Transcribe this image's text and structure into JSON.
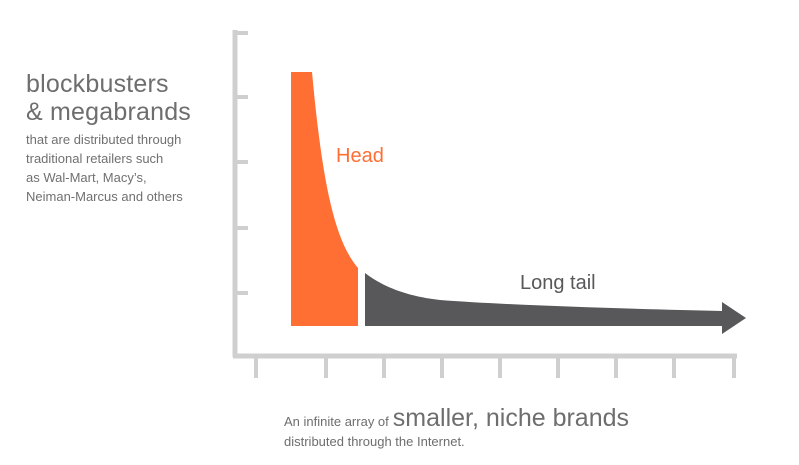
{
  "y_axis_label": {
    "line1": "blockbusters",
    "line2": "& megabrands",
    "desc": [
      "that are distributed through",
      "traditional retailers such",
      "as Wal-Mart, Macy’s,",
      "Neiman-Marcus and others"
    ]
  },
  "x_axis_label": {
    "prefix": "An infinite array of",
    "emphasis": "smaller, niche brands",
    "line2": "distributed through the Internet."
  },
  "regions": {
    "head_label": "Head",
    "tail_label": "Long tail"
  },
  "colors": {
    "head": "#ff6e33",
    "tail": "#58585a",
    "axis": "#cfcfcf",
    "text": "#6e6e6e"
  }
}
